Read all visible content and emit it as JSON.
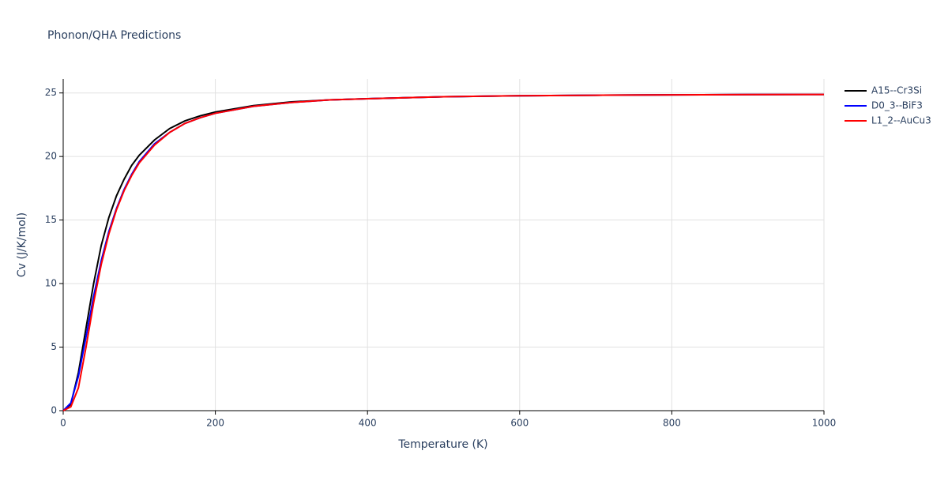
{
  "chart_data": {
    "type": "line",
    "title": "Phonon/QHA Predictions",
    "x_label": "Temperature (K)",
    "y_label": "Cv (J/K/mol)",
    "x": [
      0,
      10,
      20,
      30,
      40,
      50,
      60,
      70,
      80,
      90,
      100,
      120,
      140,
      160,
      180,
      200,
      250,
      300,
      350,
      400,
      500,
      600,
      700,
      800,
      900,
      1000
    ],
    "series": [
      {
        "name": "A15--Cr3Si",
        "color": "#000000",
        "values": [
          0,
          0.5,
          3.0,
          6.5,
          10.0,
          13.0,
          15.2,
          16.9,
          18.2,
          19.3,
          20.1,
          21.3,
          22.2,
          22.8,
          23.2,
          23.5,
          24.0,
          24.3,
          24.45,
          24.55,
          24.7,
          24.78,
          24.82,
          24.85,
          24.87,
          24.88
        ]
      },
      {
        "name": "D0_3--BiF3",
        "color": "#0000ff",
        "values": [
          0,
          0.6,
          2.7,
          5.8,
          9.0,
          11.8,
          14.1,
          15.9,
          17.4,
          18.6,
          19.6,
          21.0,
          21.9,
          22.6,
          23.05,
          23.4,
          23.95,
          24.25,
          24.45,
          24.55,
          24.7,
          24.78,
          24.82,
          24.85,
          24.87,
          24.88
        ]
      },
      {
        "name": "L1_2--AuCu3",
        "color": "#ff0000",
        "values": [
          0,
          0.3,
          1.8,
          5.0,
          8.5,
          11.5,
          13.9,
          15.8,
          17.3,
          18.5,
          19.5,
          20.9,
          21.9,
          22.6,
          23.05,
          23.4,
          23.95,
          24.25,
          24.45,
          24.55,
          24.7,
          24.78,
          24.82,
          24.85,
          24.87,
          24.88
        ]
      }
    ],
    "xlim": [
      0,
      1000
    ],
    "xticks": [
      0,
      200,
      400,
      600,
      800,
      1000
    ],
    "ylim": [
      0,
      26.1
    ],
    "yticks": [
      0,
      5,
      10,
      15,
      20,
      25
    ],
    "grid": true,
    "legend": "outside-right"
  }
}
